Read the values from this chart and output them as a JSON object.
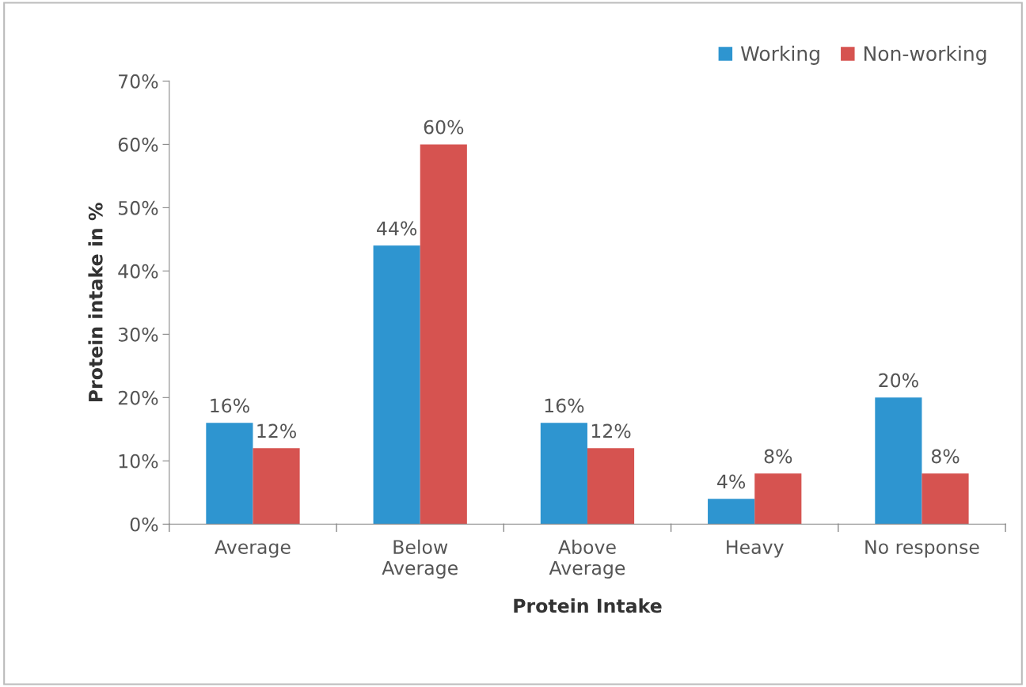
{
  "chart_data": {
    "type": "bar",
    "xlabel": "Protein Intake",
    "ylabel": "Protein intake in %",
    "categories": [
      "Average",
      "Below\nAverage",
      "Above\nAverage",
      "Heavy",
      "No response"
    ],
    "series": [
      {
        "name": "Working",
        "color": "#2e95d0",
        "values": [
          16,
          44,
          16,
          4,
          20
        ],
        "value_labels": [
          "16%",
          "44%",
          "16%",
          "4%",
          "20%"
        ]
      },
      {
        "name": "Non-working",
        "color": "#d65350",
        "values": [
          12,
          60,
          12,
          8,
          8
        ],
        "value_labels": [
          "12%",
          "60%",
          "12%",
          "8%",
          "8%"
        ]
      }
    ],
    "ylim": [
      0,
      70
    ],
    "yticks": [
      {
        "value": 0,
        "label": "0%"
      },
      {
        "value": 10,
        "label": "10%"
      },
      {
        "value": 20,
        "label": "20%"
      },
      {
        "value": 30,
        "label": "30%"
      },
      {
        "value": 40,
        "label": "40%"
      },
      {
        "value": 50,
        "label": "50%"
      },
      {
        "value": 60,
        "label": "60%"
      },
      {
        "value": 70,
        "label": "70%"
      }
    ],
    "grid": false,
    "legend": "top right"
  }
}
